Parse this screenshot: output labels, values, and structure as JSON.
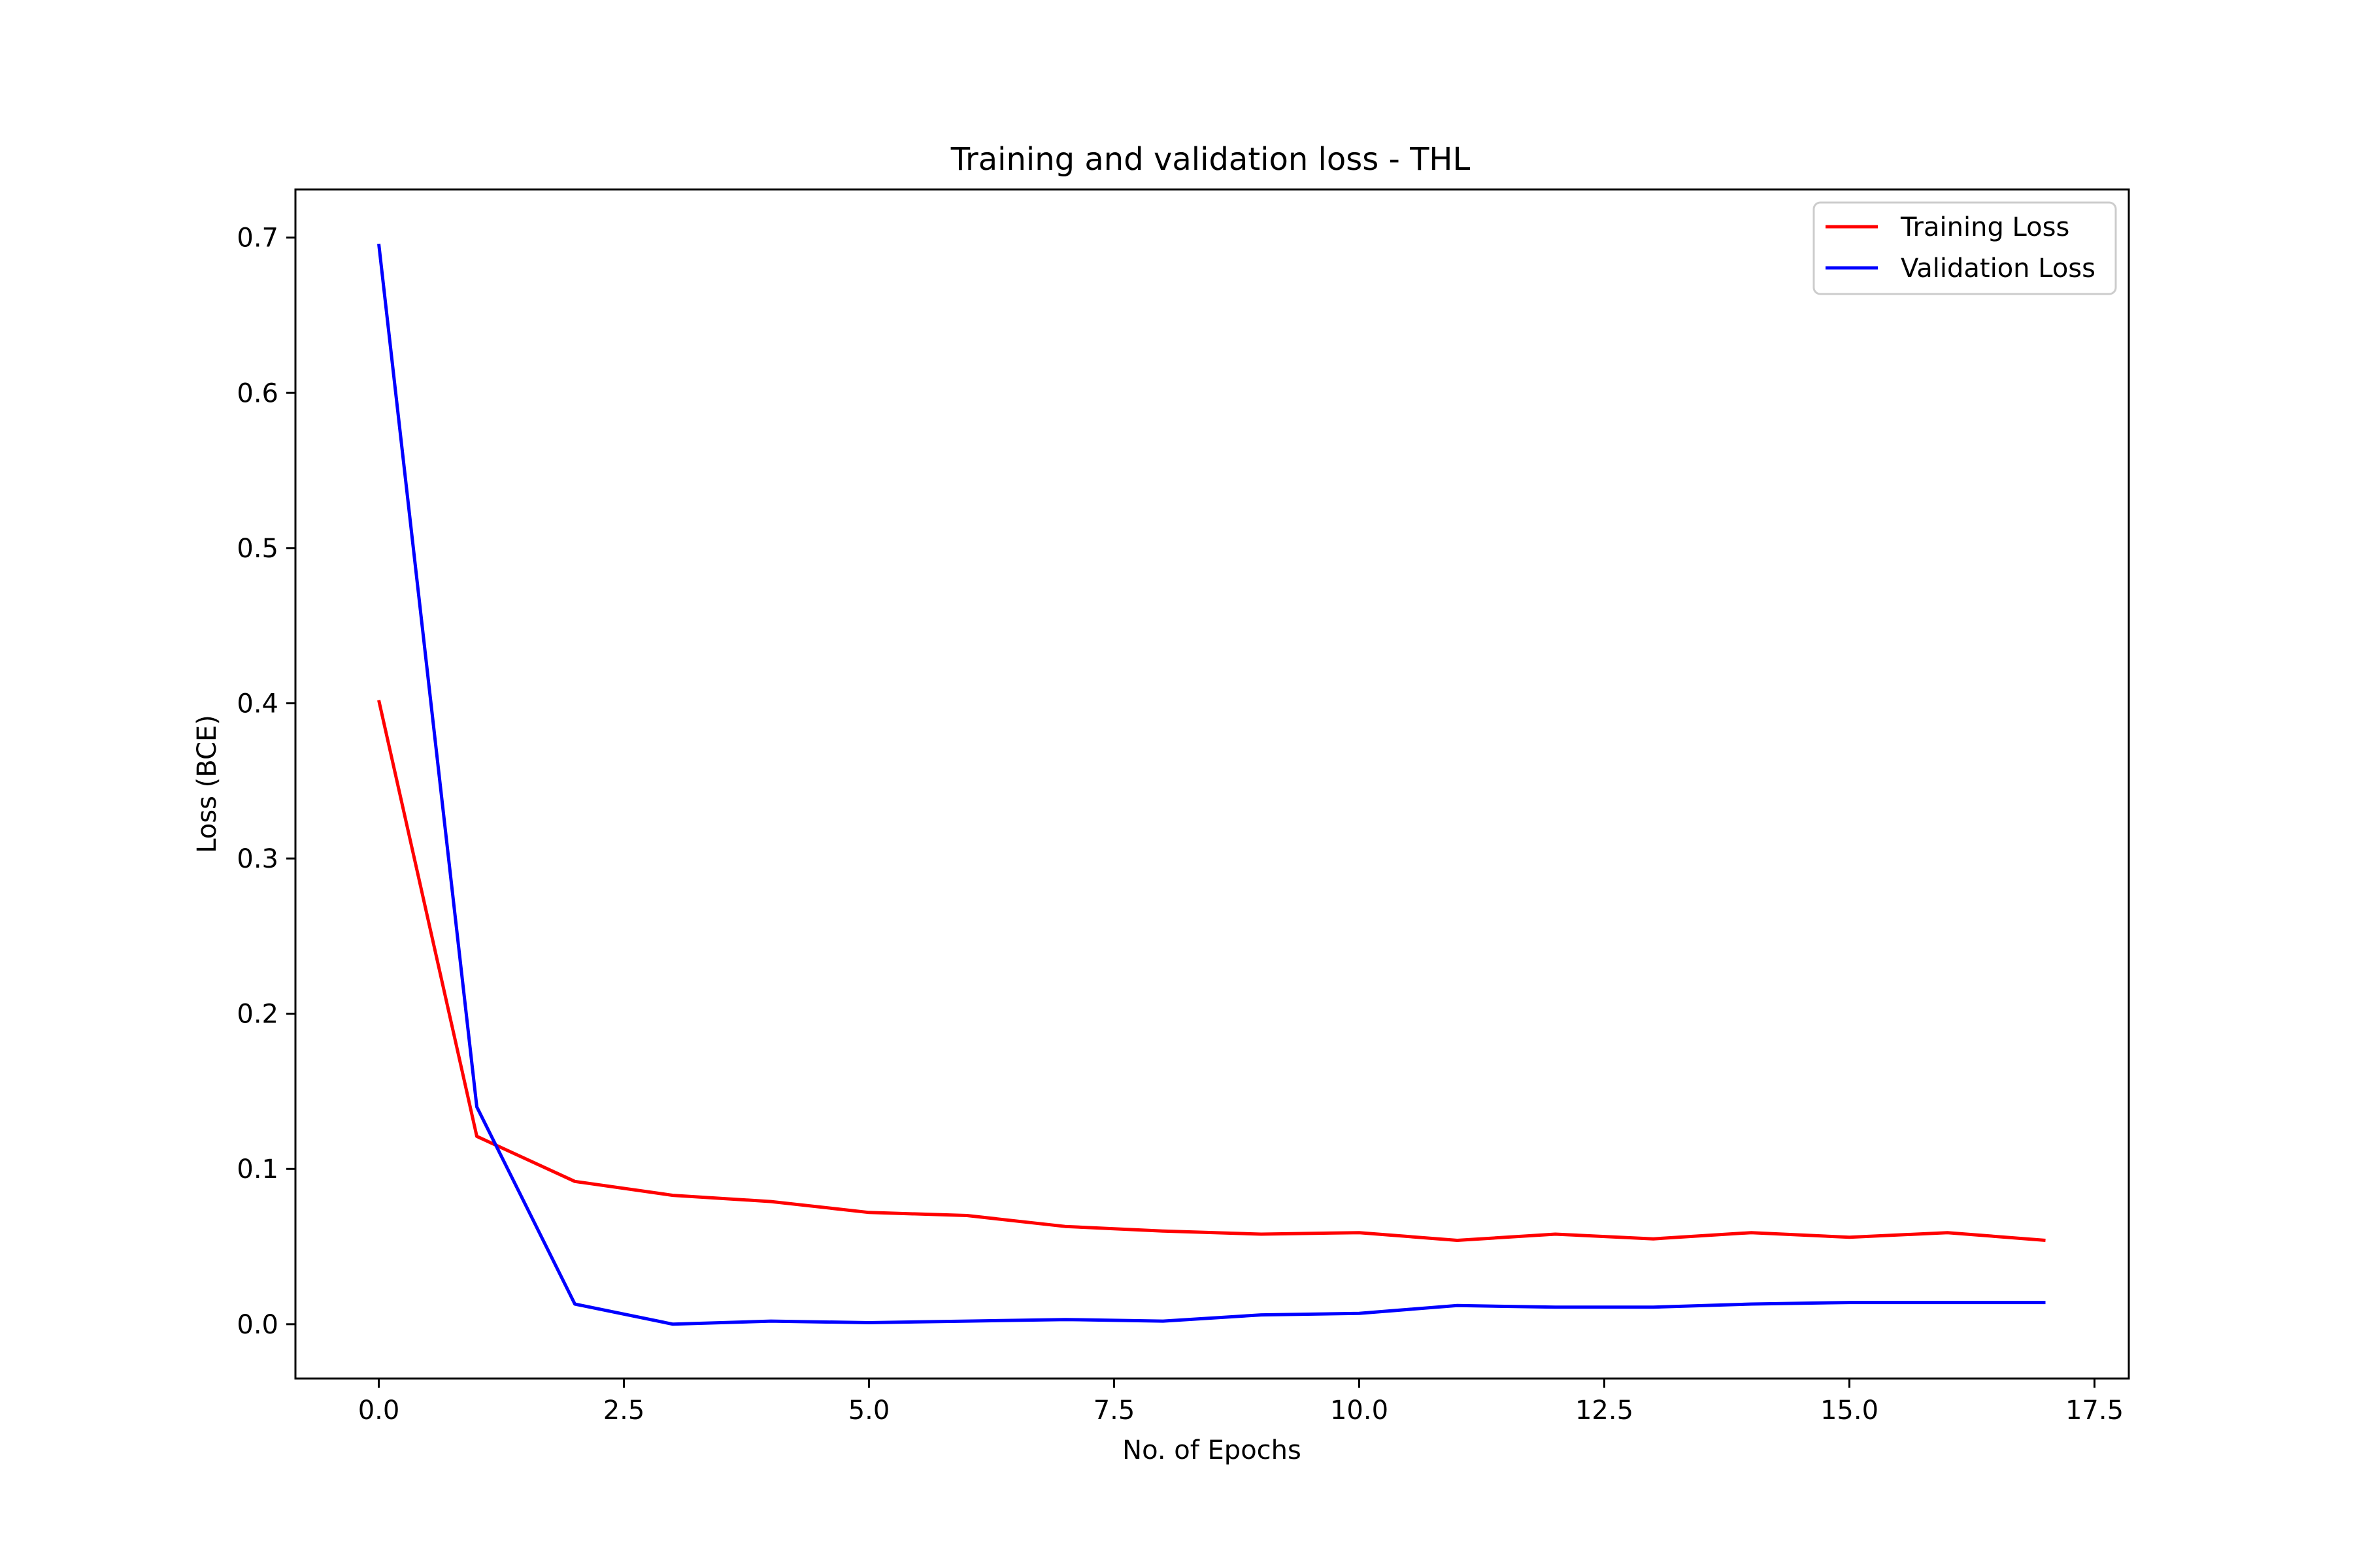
{
  "chart_data": {
    "type": "line",
    "title": "Training and validation loss - THL",
    "xlabel": "No. of Epochs",
    "ylabel": "Loss (BCE)",
    "x": [
      0,
      1,
      2,
      3,
      4,
      5,
      6,
      7,
      8,
      9,
      10,
      11,
      12,
      13,
      14,
      15,
      16,
      17
    ],
    "series": [
      {
        "name": "Training Loss",
        "color": "#ff0000",
        "values": [
          0.402,
          0.121,
          0.092,
          0.083,
          0.079,
          0.072,
          0.07,
          0.063,
          0.06,
          0.058,
          0.059,
          0.054,
          0.058,
          0.055,
          0.059,
          0.056,
          0.059,
          0.054
        ]
      },
      {
        "name": "Validation Loss",
        "color": "#0000ff",
        "values": [
          0.696,
          0.14,
          0.013,
          0.0,
          0.002,
          0.001,
          0.002,
          0.003,
          0.002,
          0.006,
          0.007,
          0.012,
          0.011,
          0.011,
          0.013,
          0.014,
          0.014,
          0.014
        ]
      }
    ],
    "xlim": [
      -0.85,
      17.85
    ],
    "ylim": [
      -0.035,
      0.731
    ],
    "xticks": [
      0.0,
      2.5,
      5.0,
      7.5,
      10.0,
      12.5,
      15.0,
      17.5
    ],
    "xtick_labels": [
      "0.0",
      "2.5",
      "5.0",
      "7.5",
      "10.0",
      "12.5",
      "15.0",
      "17.5"
    ],
    "yticks": [
      0.0,
      0.1,
      0.2,
      0.3,
      0.4,
      0.5,
      0.6,
      0.7
    ],
    "ytick_labels": [
      "0.0",
      "0.1",
      "0.2",
      "0.3",
      "0.4",
      "0.5",
      "0.6",
      "0.7"
    ],
    "grid": false,
    "legend_position": "upper right"
  }
}
